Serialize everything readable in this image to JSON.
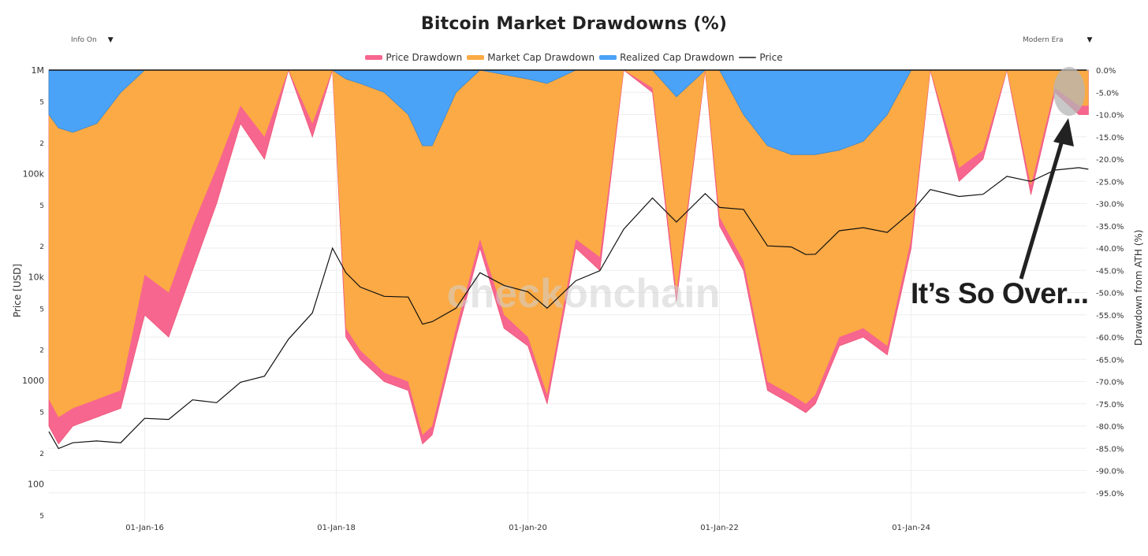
{
  "header": {
    "title": "Bitcoin Market Drawdowns (%)",
    "info_dropdown": "Info On",
    "era_dropdown": "Modern Era",
    "caret": "▼"
  },
  "legend": [
    {
      "label": "Price Drawdown",
      "color": "#f7668f",
      "type": "area"
    },
    {
      "label": "Market Cap Drawdown",
      "color": "#fbaa45",
      "type": "area"
    },
    {
      "label": "Realized Cap Drawdown",
      "color": "#4aa3f7",
      "type": "area"
    },
    {
      "label": "Price",
      "color": "#111111",
      "type": "line"
    }
  ],
  "axes": {
    "left_label": "Price [USD]",
    "right_label": "Drawdown from ATH (%)",
    "left_ticks": [
      "1M",
      "5",
      "2",
      "100k",
      "5",
      "2",
      "10k",
      "5",
      "2",
      "1000",
      "5",
      "2",
      "100",
      "5"
    ],
    "right_ticks": [
      "0.0%",
      "-5.0%",
      "-10.0%",
      "-15.0%",
      "-20.0%",
      "-25.0%",
      "-30.0%",
      "-35.0%",
      "-40.0%",
      "-45.0%",
      "-50.0%",
      "-55.0%",
      "-60.0%",
      "-65.0%",
      "-70.0%",
      "-75.0%",
      "-80.0%",
      "-85.0%",
      "-90.0%",
      "-95.0%"
    ],
    "x_ticks": [
      "01-Jan-16",
      "01-Jan-18",
      "01-Jan-20",
      "01-Jan-22",
      "01-Jan-24"
    ]
  },
  "watermark": "checkonchain",
  "annotation": {
    "text": "It’s So Over...",
    "highlight_color": "#b5b5b5"
  },
  "chart_data": {
    "type": "area",
    "title": "Bitcoin Market Drawdowns (%)",
    "xlabel": "",
    "ylabel": "Price [USD]",
    "y2label": "Drawdown from ATH (%)",
    "x_range": [
      "2015-01",
      "2025-11"
    ],
    "y_price_log_range": [
      50,
      1000000
    ],
    "y_drawdown_range": [
      -100,
      0
    ],
    "grid": true,
    "legend_position": "top",
    "x": [
      2015.0,
      2015.1,
      2015.25,
      2015.5,
      2015.75,
      2016.0,
      2016.25,
      2016.5,
      2016.75,
      2017.0,
      2017.25,
      2017.5,
      2017.75,
      2017.96,
      2018.1,
      2018.25,
      2018.5,
      2018.75,
      2018.9,
      2019.0,
      2019.25,
      2019.5,
      2019.75,
      2020.0,
      2020.2,
      2020.5,
      2020.75,
      2021.0,
      2021.3,
      2021.55,
      2021.85,
      2022.0,
      2022.25,
      2022.5,
      2022.75,
      2022.9,
      2023.0,
      2023.25,
      2023.5,
      2023.75,
      2024.0,
      2024.2,
      2024.5,
      2024.75,
      2025.0,
      2025.25,
      2025.5,
      2025.75,
      2025.85
    ],
    "series": [
      {
        "name": "Price",
        "values": [
          320,
          220,
          250,
          260,
          250,
          430,
          420,
          650,
          610,
          960,
          1100,
          2500,
          4500,
          19000,
          11000,
          8000,
          6500,
          6400,
          3500,
          3700,
          5000,
          11000,
          8300,
          7200,
          5000,
          9200,
          11500,
          29000,
          58000,
          34000,
          64000,
          47000,
          45000,
          20000,
          19500,
          16500,
          16600,
          28000,
          30000,
          27000,
          42500,
          70000,
          60000,
          63000,
          94000,
          84000,
          108000,
          114000,
          110000
        ]
      },
      {
        "name": "Price Drawdown",
        "values": [
          -80,
          -84,
          -80,
          -78,
          -76,
          -55,
          -60,
          -45,
          -30,
          -12,
          -20,
          0,
          -15,
          0,
          -60,
          -65,
          -70,
          -72,
          -84,
          -82,
          -60,
          -40,
          -58,
          -62,
          -75,
          -40,
          -45,
          0,
          -5,
          -52,
          0,
          -35,
          -45,
          -72,
          -75,
          -77,
          -75,
          -62,
          -60,
          -64,
          -40,
          0,
          -25,
          -20,
          0,
          -28,
          -5,
          -10,
          -10
        ]
      },
      {
        "name": "Market Cap Drawdown",
        "values": [
          -74,
          -78,
          -76,
          -74,
          -72,
          -46,
          -50,
          -35,
          -22,
          -8,
          -15,
          0,
          -12,
          0,
          -58,
          -63,
          -68,
          -70,
          -82,
          -80,
          -58,
          -38,
          -55,
          -60,
          -73,
          -38,
          -42,
          0,
          -4,
          -50,
          0,
          -33,
          -43,
          -70,
          -73,
          -75,
          -73,
          -60,
          -58,
          -62,
          -38,
          0,
          -22,
          -18,
          0,
          -26,
          -4,
          -8,
          -8
        ]
      },
      {
        "name": "Realized Cap Drawdown",
        "values": [
          -10,
          -13,
          -14,
          -12,
          -5,
          0,
          0,
          0,
          0,
          0,
          0,
          0,
          0,
          0,
          -2,
          -3,
          -5,
          -10,
          -17,
          -17,
          -5,
          0,
          -1,
          -2,
          -3,
          0,
          0,
          0,
          0,
          -6,
          0,
          0,
          -10,
          -17,
          -19,
          -19,
          -19,
          -18,
          -16,
          -10,
          0,
          0,
          0,
          0,
          0,
          0,
          0,
          0,
          0
        ]
      }
    ]
  }
}
